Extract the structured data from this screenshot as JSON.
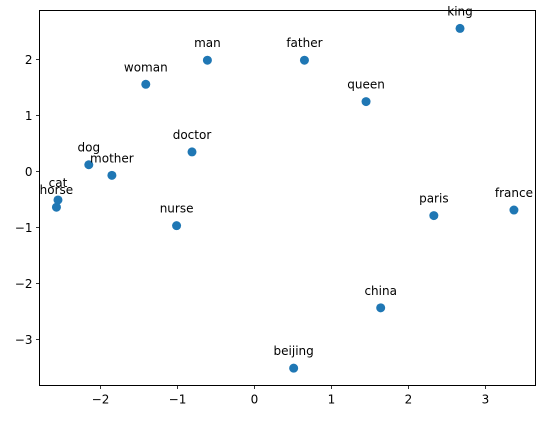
{
  "chart_data": {
    "type": "scatter",
    "title": "",
    "xlabel": "",
    "ylabel": "",
    "xlim": [
      -2.78,
      3.66
    ],
    "ylim": [
      -3.84,
      2.87
    ],
    "grid": false,
    "marker_color": "#1f77b4",
    "x_ticks": [
      -2,
      -1,
      0,
      1,
      2,
      3
    ],
    "x_tick_labels": [
      "−2",
      "−1",
      "0",
      "1",
      "2",
      "3"
    ],
    "y_ticks": [
      -3,
      -2,
      -1,
      0,
      1,
      2
    ],
    "y_tick_labels": [
      "−3",
      "−2",
      "−1",
      "0",
      "1",
      "2"
    ],
    "points": [
      {
        "label": "king",
        "x": 2.68,
        "y": 2.55
      },
      {
        "label": "man",
        "x": -0.6,
        "y": 1.98
      },
      {
        "label": "father",
        "x": 0.66,
        "y": 1.98
      },
      {
        "label": "woman",
        "x": -1.4,
        "y": 1.55
      },
      {
        "label": "queen",
        "x": 1.46,
        "y": 1.24
      },
      {
        "label": "doctor",
        "x": -0.8,
        "y": 0.34
      },
      {
        "label": "dog",
        "x": -2.14,
        "y": 0.11
      },
      {
        "label": "mother",
        "x": -1.84,
        "y": -0.08
      },
      {
        "label": "cat",
        "x": -2.54,
        "y": -0.52
      },
      {
        "label": "horse",
        "x": -2.56,
        "y": -0.65
      },
      {
        "label": "nurse",
        "x": -1.0,
        "y": -0.98
      },
      {
        "label": "paris",
        "x": 2.34,
        "y": -0.8
      },
      {
        "label": "france",
        "x": 3.38,
        "y": -0.7
      },
      {
        "label": "china",
        "x": 1.65,
        "y": -2.45
      },
      {
        "label": "beijing",
        "x": 0.52,
        "y": -3.53
      }
    ]
  }
}
